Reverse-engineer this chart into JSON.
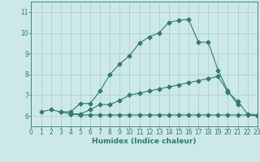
{
  "line1_x": [
    1,
    2,
    3,
    4,
    5,
    6,
    7,
    8,
    9,
    10,
    11,
    12,
    13,
    14,
    15,
    16,
    17,
    18,
    19,
    20,
    21
  ],
  "line1_y": [
    6.2,
    6.3,
    6.2,
    6.2,
    6.6,
    6.6,
    7.2,
    8.0,
    8.5,
    8.9,
    9.5,
    9.8,
    10.0,
    10.5,
    10.6,
    10.65,
    9.55,
    9.55,
    8.2,
    7.2,
    6.55
  ],
  "line2_x": [
    3,
    4,
    5,
    6,
    7,
    8,
    9,
    10,
    11,
    12,
    13,
    14,
    15,
    16,
    17,
    18,
    19,
    20,
    21,
    22,
    23
  ],
  "line2_y": [
    6.2,
    6.1,
    6.1,
    6.3,
    6.55,
    6.55,
    6.75,
    7.0,
    7.1,
    7.2,
    7.3,
    7.4,
    7.5,
    7.6,
    7.7,
    7.8,
    7.9,
    7.15,
    6.7,
    6.1,
    6.05
  ],
  "line3_x": [
    4,
    5,
    6,
    7,
    8,
    9,
    10,
    11,
    12,
    13,
    14,
    15,
    16,
    17,
    18,
    19,
    20,
    21,
    22,
    23
  ],
  "line3_y": [
    6.1,
    6.05,
    6.05,
    6.05,
    6.05,
    6.05,
    6.05,
    6.05,
    6.05,
    6.05,
    6.05,
    6.05,
    6.05,
    6.05,
    6.05,
    6.05,
    6.05,
    6.05,
    6.05,
    6.0
  ],
  "color": "#2e7d6e",
  "bg_color": "#cce8e8",
  "grid_color": "#aacccc",
  "xlabel": "Humidex (Indice chaleur)",
  "xlim": [
    0,
    23
  ],
  "ylim": [
    5.5,
    11.5
  ],
  "yticks": [
    6,
    7,
    8,
    9,
    10,
    11
  ],
  "xticks": [
    0,
    1,
    2,
    3,
    4,
    5,
    6,
    7,
    8,
    9,
    10,
    11,
    12,
    13,
    14,
    15,
    16,
    17,
    18,
    19,
    20,
    21,
    22,
    23
  ]
}
